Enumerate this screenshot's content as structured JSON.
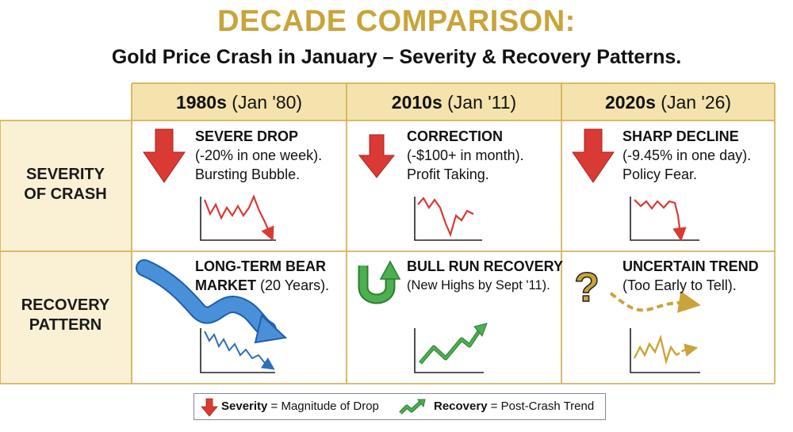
{
  "title": "DECADE COMPARISON:",
  "subtitle": "Gold Price Crash in January – Severity & Recovery Patterns.",
  "columns": [
    {
      "decade": "1980s",
      "date": "(Jan '80)"
    },
    {
      "decade": "2010s",
      "date": "(Jan '11)"
    },
    {
      "decade": "2020s",
      "date": "(Jan '26)"
    }
  ],
  "rows": {
    "severity": {
      "line1": "SEVERITY",
      "line2": "OF CRASH"
    },
    "recovery": {
      "line1": "RECOVERY",
      "line2": "PATTERN"
    }
  },
  "severity": [
    {
      "heading": "SEVERE DROP",
      "line1": "(-20% in one week).",
      "line2": "Bursting Bubble."
    },
    {
      "heading": "CORRECTION",
      "line1": "(-$100+ in month).",
      "line2": "Profit Taking."
    },
    {
      "heading": "SHARP DECLINE",
      "line1": "(-9.45% in one day).",
      "line2": "Policy Fear."
    }
  ],
  "recovery": [
    {
      "heading": "LONG-TERM BEAR",
      "heading2": "MARKET",
      "note": "(20 Years)."
    },
    {
      "heading": "BULL RUN RECOVERY",
      "line1": "(New Highs by Sept '11)."
    },
    {
      "heading": "UNCERTAIN TREND",
      "line1": "(Too Early to Tell)."
    }
  ],
  "legend": {
    "severity_label": "Severity",
    "severity_text": "= Magnitude of Drop",
    "recovery_label": "Recovery",
    "recovery_text": "= Post-Crash Trend"
  },
  "colors": {
    "gold": "#c9a43a",
    "header_fill": "#f5e3ad",
    "side_fill": "#faf0d4",
    "red": "#d93a34",
    "blue": "#4a90d9",
    "green": "#4caf50"
  },
  "icons": {
    "severity": "down-arrow-icon",
    "bear": "wavy-down-arrow-icon",
    "bull": "u-turn-up-arrow-icon",
    "uncertain": "question-mark-icon"
  }
}
